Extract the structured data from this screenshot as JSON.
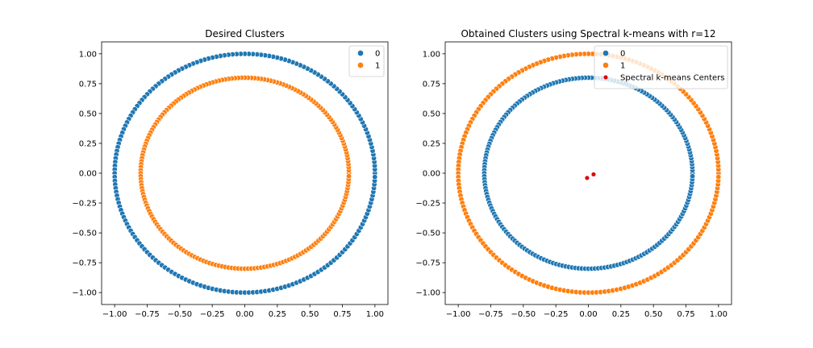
{
  "chart_data": [
    {
      "type": "scatter",
      "title": "Desired Clusters",
      "xlabel": "",
      "ylabel": "",
      "xlim": [
        -1.1,
        1.1
      ],
      "ylim": [
        -1.1,
        1.1
      ],
      "xticks": [
        -1.0,
        -0.75,
        -0.5,
        -0.25,
        0.0,
        0.25,
        0.5,
        0.75,
        1.0
      ],
      "xtick_labels": [
        "−1.00",
        "−0.75",
        "−0.50",
        "−0.25",
        "0.00",
        "0.25",
        "0.50",
        "0.75",
        "1.00"
      ],
      "yticks": [
        -1.0,
        -0.75,
        -0.5,
        -0.25,
        0.0,
        0.25,
        0.5,
        0.75,
        1.0
      ],
      "ytick_labels": [
        "−1.00",
        "−0.75",
        "−0.50",
        "−0.25",
        "0.00",
        "0.25",
        "0.50",
        "0.75",
        "1.00"
      ],
      "grid": false,
      "legend_position": "top-right",
      "series": [
        {
          "name": "0",
          "color": "#1f77b4",
          "shape": "circle",
          "radius": 1.0,
          "n_points": 200
        },
        {
          "name": "1",
          "color": "#ff7f0e",
          "shape": "circle",
          "radius": 0.8,
          "n_points": 200
        }
      ],
      "extra_points": []
    },
    {
      "type": "scatter",
      "title": "Obtained Clusters using Spectral k-means with r=12",
      "xlabel": "",
      "ylabel": "",
      "xlim": [
        -1.1,
        1.1
      ],
      "ylim": [
        -1.1,
        1.1
      ],
      "xticks": [
        -1.0,
        -0.75,
        -0.5,
        -0.25,
        0.0,
        0.25,
        0.5,
        0.75,
        1.0
      ],
      "xtick_labels": [
        "−1.00",
        "−0.75",
        "−0.50",
        "−0.25",
        "0.00",
        "0.25",
        "0.50",
        "0.75",
        "1.00"
      ],
      "yticks": [
        -1.0,
        -0.75,
        -0.5,
        -0.25,
        0.0,
        0.25,
        0.5,
        0.75,
        1.0
      ],
      "ytick_labels": [
        "−1.00",
        "−0.75",
        "−0.50",
        "−0.25",
        "0.00",
        "0.25",
        "0.50",
        "0.75",
        "1.00"
      ],
      "grid": false,
      "legend_position": "top-right",
      "series": [
        {
          "name": "0",
          "color": "#1f77b4",
          "shape": "circle",
          "radius": 0.8,
          "n_points": 200
        },
        {
          "name": "1",
          "color": "#ff7f0e",
          "shape": "circle",
          "radius": 1.0,
          "n_points": 200
        }
      ],
      "extra_points": [
        {
          "name": "Spectral k-means Centers",
          "color": "#e0000b",
          "points": [
            [
              -0.01,
              -0.04
            ],
            [
              0.04,
              -0.01
            ]
          ]
        }
      ]
    }
  ]
}
